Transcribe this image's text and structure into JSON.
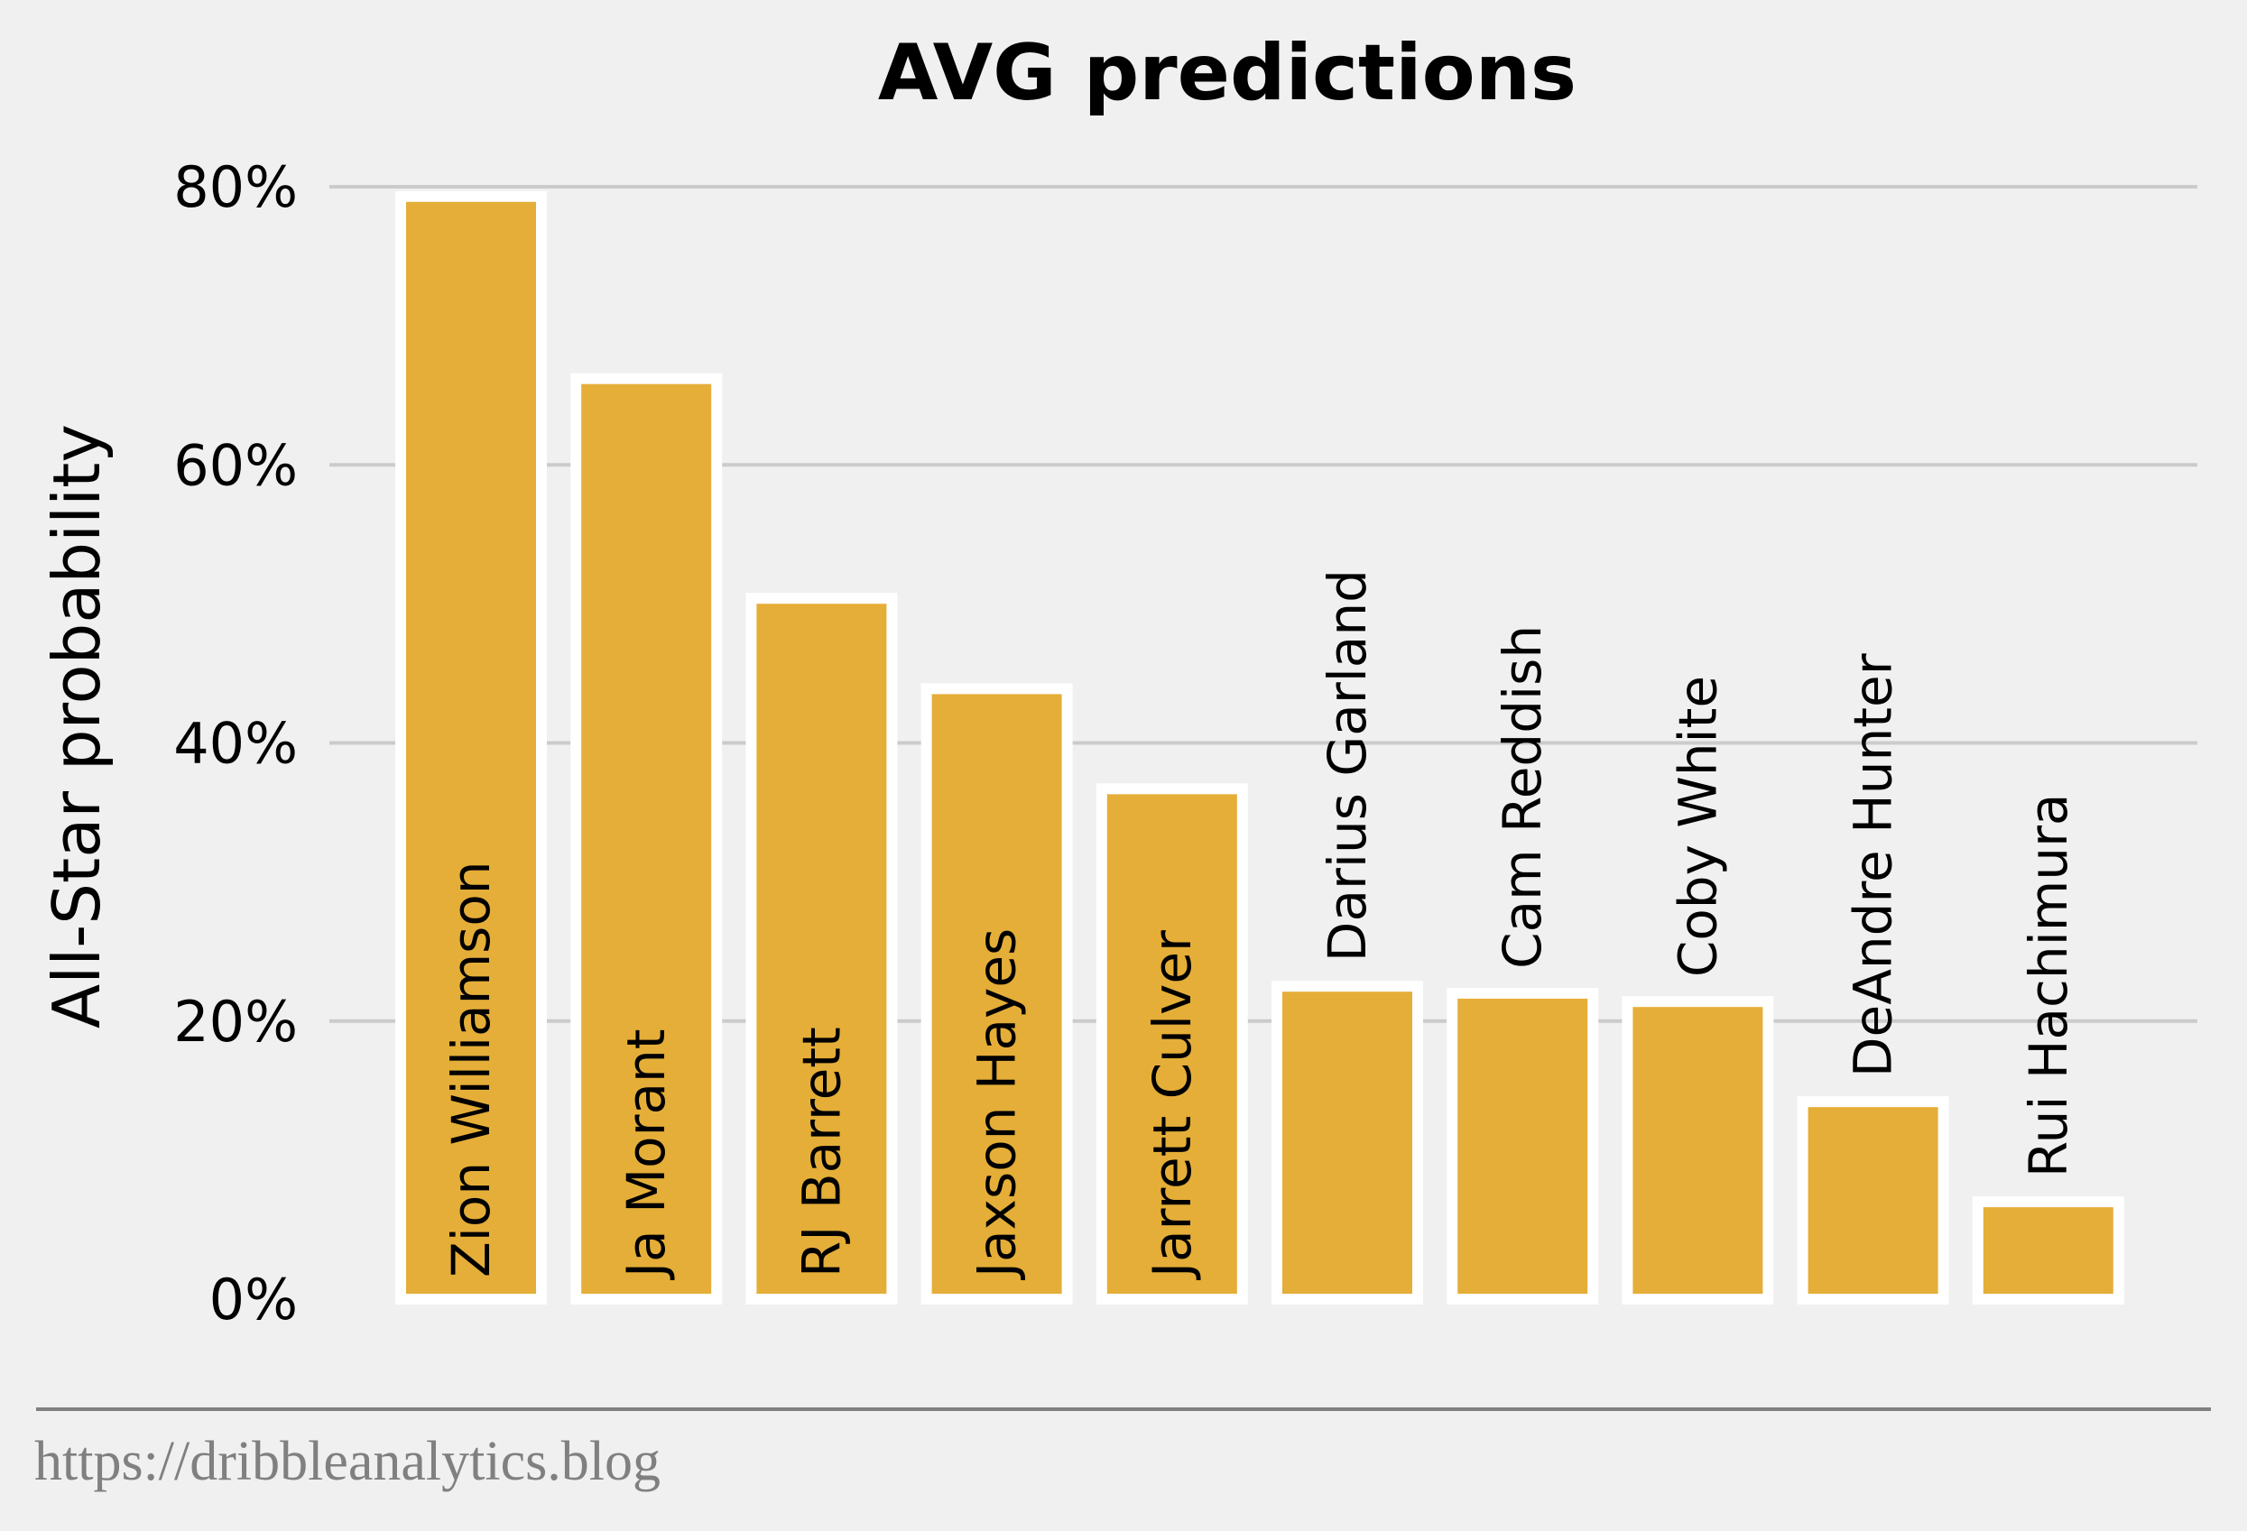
{
  "chart_data": {
    "type": "bar",
    "title": "AVG predictions",
    "xlabel": "",
    "ylabel": "All-Star probability",
    "categories": [
      "Zion Williamson",
      "Ja Morant",
      "RJ Barrett",
      "Jaxson Hayes",
      "Jarrett Culver",
      "Darius Garland",
      "Cam Reddish",
      "Coby White",
      "DeAndre Hunter",
      "Rui Hachimura"
    ],
    "values": [
      79.3,
      66.2,
      50.4,
      43.9,
      36.7,
      22.5,
      22.0,
      21.4,
      14.2,
      7.0
    ],
    "ylim": [
      0,
      80
    ],
    "yticks": [
      0,
      20,
      40,
      60,
      80
    ],
    "ytick_labels": [
      "0%",
      "20%",
      "40%",
      "60%",
      "80%"
    ],
    "grid": "horizontal",
    "bar_color": "#e5ae38",
    "bar_edge_color": "#ffffff",
    "label_placement": "inside-bar-vertical-if-fits-else-above"
  },
  "footer": {
    "source": "https://dribbleanalytics.blog"
  },
  "colors": {
    "background": "#f0f0f0",
    "grid": "#cbcbcb",
    "footer_rule": "#808080",
    "footer_text": "#808080"
  }
}
